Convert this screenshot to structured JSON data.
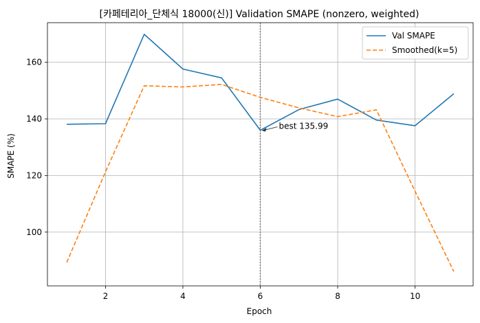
{
  "chart_data": {
    "type": "line",
    "title": "[카페테리아_단체식 18000(신)] Validation SMAPE (nonzero, weighted)",
    "xlabel": "Epoch",
    "ylabel": "SMAPE (%)",
    "xlim": [
      0.5,
      11.5
    ],
    "ylim": [
      81,
      174
    ],
    "xticks": [
      2,
      4,
      6,
      8,
      10
    ],
    "yticks": [
      100,
      120,
      140,
      160
    ],
    "grid": true,
    "legend_position": "top-right",
    "x": [
      1,
      2,
      3,
      4,
      5,
      6,
      7,
      8,
      9,
      10,
      11
    ],
    "series": [
      {
        "name": "Val SMAPE",
        "color": "#1f77b4",
        "style": "solid",
        "values": [
          138.1,
          138.3,
          169.9,
          157.6,
          154.5,
          135.99,
          143.3,
          147.0,
          139.6,
          137.6,
          148.9
        ]
      },
      {
        "name": "Smoothed(k=5)",
        "color": "#ff7f0e",
        "style": "dashed",
        "values": [
          89.3,
          121.3,
          151.7,
          151.3,
          152.2,
          147.6,
          143.9,
          140.8,
          143.2,
          114.4,
          86.1
        ]
      }
    ],
    "best_marker": {
      "x": 6,
      "y": 135.99,
      "label": "best 135.99",
      "line_color": "#808080"
    }
  }
}
